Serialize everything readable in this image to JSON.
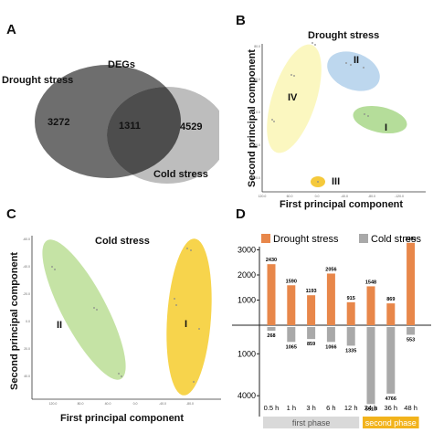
{
  "panels": {
    "a": {
      "letter": "A"
    },
    "b": {
      "letter": "B"
    },
    "c": {
      "letter": "C"
    },
    "d": {
      "letter": "D"
    }
  },
  "colors": {
    "drought": "#e8874a",
    "cold": "#a9a9a9",
    "venn_dark": "#6e6e6e",
    "venn_light": "#bdbdbd",
    "venn_overlap": "#4d4d4d",
    "ellipse_yellow": "#fbf7c0",
    "ellipse_blue": "#bdd7ee",
    "ellipse_green": "#b5dd9a",
    "ellipse_gold": "#f5c93b",
    "phase1": "#d9d9d9",
    "phase2": "#f2b31c"
  },
  "chart_data": [
    {
      "type": "venn",
      "title": "DEGs",
      "sets": [
        {
          "name": "Drought stress",
          "only": "3272"
        },
        {
          "name": "Cold stress",
          "only": "4529"
        }
      ],
      "intersection": "1311"
    },
    {
      "type": "scatter",
      "title": "Drought stress",
      "xlabel": "First principal component",
      "ylabel": "Second principal component",
      "groups": [
        "IV",
        "II",
        "I",
        "III"
      ]
    },
    {
      "type": "scatter",
      "title": "Cold stress",
      "xlabel": "First principal component",
      "ylabel": "Second principal component",
      "groups": [
        "II",
        "I"
      ]
    },
    {
      "type": "bar",
      "categories": [
        "0.5 h",
        "1 h",
        "3 h",
        "6 h",
        "12 h",
        "24 h",
        "36 h",
        "48 h"
      ],
      "series": [
        {
          "name": "Drought stress",
          "values": [
            2430,
            1590,
            1193,
            2056,
            915,
            1548,
            869,
            3281
          ]
        },
        {
          "name": "Cold stress",
          "values": [
            268,
            1065,
            859,
            1066,
            1335,
            5510,
            4766,
            553
          ]
        }
      ],
      "y_ticks_up": [
        "3000",
        "2000",
        "1000"
      ],
      "y_ticks_down": [
        "1000",
        "4000"
      ],
      "phases": [
        {
          "label": "first phase",
          "from": 0,
          "to": 4
        },
        {
          "label": "second phase",
          "from": 5,
          "to": 7
        }
      ],
      "legend": "top"
    }
  ]
}
